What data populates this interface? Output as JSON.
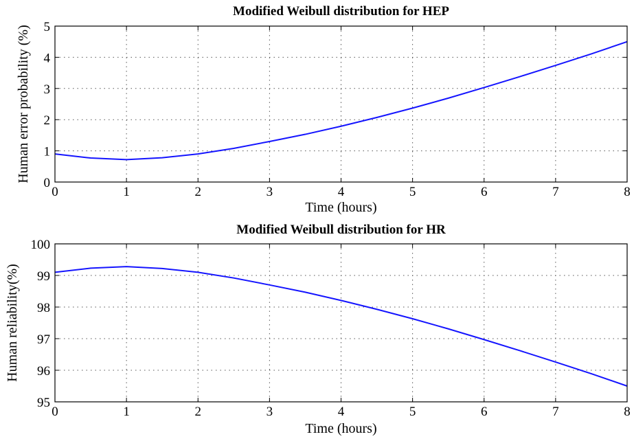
{
  "chart_data": [
    {
      "type": "line",
      "title": "Modified Weibull distribution for HEP",
      "xlabel": "Time (hours)",
      "ylabel": "Human error probability (%)",
      "xlim": [
        0,
        8
      ],
      "ylim": [
        0,
        5
      ],
      "xticks": [
        "0",
        "1",
        "2",
        "3",
        "4",
        "5",
        "6",
        "7",
        "8"
      ],
      "yticks": [
        "0",
        "1",
        "2",
        "3",
        "4",
        "5"
      ],
      "grid": true,
      "series": [
        {
          "color": "#1414ff",
          "x": [
            0,
            0.5,
            1,
            1.5,
            2,
            2.5,
            3,
            3.5,
            4,
            4.5,
            5,
            5.5,
            6,
            6.5,
            7,
            7.5,
            8
          ],
          "y": [
            0.9,
            0.77,
            0.72,
            0.78,
            0.9,
            1.08,
            1.3,
            1.53,
            1.79,
            2.07,
            2.37,
            2.69,
            3.03,
            3.38,
            3.74,
            4.11,
            4.5
          ]
        }
      ]
    },
    {
      "type": "line",
      "title": "Modified Weibull distribution for HR",
      "xlabel": "Time (hours)",
      "ylabel": "Human reliability(%)",
      "xlim": [
        0,
        8
      ],
      "ylim": [
        95,
        100
      ],
      "xticks": [
        "0",
        "1",
        "2",
        "3",
        "4",
        "5",
        "6",
        "7",
        "8"
      ],
      "yticks": [
        "95",
        "96",
        "97",
        "98",
        "99",
        "100"
      ],
      "grid": true,
      "series": [
        {
          "color": "#1414ff",
          "x": [
            0,
            0.5,
            1,
            1.5,
            2,
            2.5,
            3,
            3.5,
            4,
            4.5,
            5,
            5.5,
            6,
            6.5,
            7,
            7.5,
            8
          ],
          "y": [
            99.1,
            99.23,
            99.28,
            99.22,
            99.1,
            98.92,
            98.7,
            98.47,
            98.21,
            97.93,
            97.63,
            97.31,
            96.97,
            96.62,
            96.26,
            95.89,
            95.5
          ]
        }
      ]
    }
  ]
}
